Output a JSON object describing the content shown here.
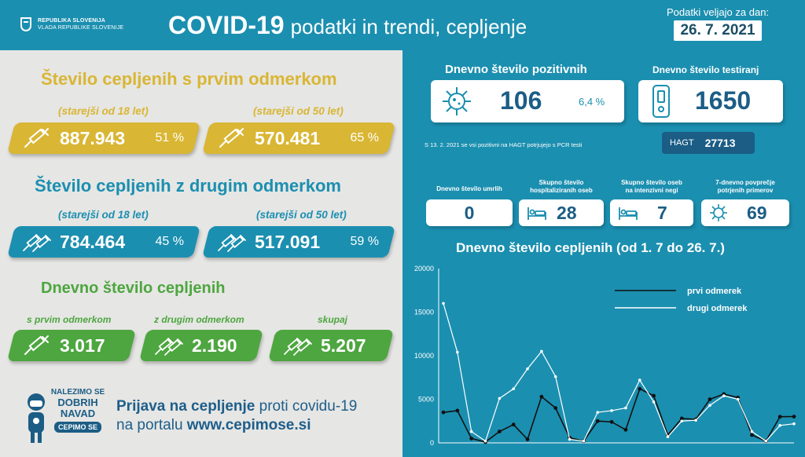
{
  "header": {
    "gov_line1": "REPUBLIKA SLOVENIJA",
    "gov_line2": "VLADA REPUBLIKE SLOVENIJE",
    "title_main": "COVID-19",
    "title_sub": "podatki in trendi, cepljenje",
    "validity_label": "Podatki veljajo za dan:",
    "validity_date": "26. 7. 2021"
  },
  "first_dose": {
    "title": "Število cepljenih s prvim odmerkom",
    "age18_label": "(starejši od 18 let)",
    "age18_value": "887.943",
    "age18_pct": "51 %",
    "age50_label": "(starejši od 50 let)",
    "age50_value": "570.481",
    "age50_pct": "65 %"
  },
  "second_dose": {
    "title": "Število cepljenih z drugim odmerkom",
    "age18_label": "(starejši od 18 let)",
    "age18_value": "784.464",
    "age18_pct": "45 %",
    "age50_label": "(starejši od 50 let)",
    "age50_value": "517.091",
    "age50_pct": "59 %"
  },
  "daily": {
    "title": "Dnevno število cepljenih",
    "first_label": "s prvim odmerkom",
    "first_value": "3.017",
    "second_label": "z drugim odmerkom",
    "second_value": "2.190",
    "total_label": "skupaj",
    "total_value": "5.207"
  },
  "promo": {
    "badge_l1": "NALEZIMO SE",
    "badge_l2": "DOBRIH",
    "badge_l3": "NAVAD",
    "badge_pill": "CEPIMO SE",
    "line1_bold": "Prijava na cepljenje",
    "line1_rest": " proti covidu-19",
    "line2_rest": "na portalu ",
    "line2_bold": "www.cepimose.si"
  },
  "positives": {
    "title": "Dnevno število pozitivnih",
    "value": "106",
    "pct": "6,4 %",
    "note": "S 13. 2. 2021 se vsi pozitivni na HAGT potrjujejo s PCR testi"
  },
  "tests": {
    "title": "Dnevno število testiranj",
    "value": "1650",
    "hagt_label": "HAGT",
    "hagt_value": "27713"
  },
  "stats": [
    {
      "title_l1": "Dnevno število umrlih",
      "title_l2": "",
      "value": "0"
    },
    {
      "title_l1": "Skupno število",
      "title_l2": "hospitaliziranih oseb",
      "value": "28"
    },
    {
      "title_l1": "Skupno število oseb",
      "title_l2": "na intenzivni negi",
      "value": "7"
    },
    {
      "title_l1": "7-dnevno povprečje",
      "title_l2": "potrjenih primerov",
      "value": "69"
    }
  ],
  "chart_title": "Dnevno število cepljenih (od 1. 7 do 26. 7.)",
  "colors": {
    "blue": "#1b8fb0",
    "dark_blue": "#1b5d85",
    "gold": "#d9b634",
    "green": "#4da63f",
    "grey": "#e6e6e4"
  },
  "chart_data": {
    "type": "line",
    "title": "Dnevno število cepljenih (od 1. 7 do 26. 7.)",
    "x": [
      1,
      2,
      3,
      4,
      5,
      6,
      7,
      8,
      9,
      10,
      11,
      12,
      13,
      14,
      15,
      16,
      17,
      18,
      19,
      20,
      21,
      22,
      23,
      24,
      25,
      26
    ],
    "ylim": [
      0,
      20000
    ],
    "yticks": [
      "0",
      "5000",
      "10000",
      "15000",
      "20000"
    ],
    "grid": false,
    "legend_position": "top-right",
    "series": [
      {
        "name": "prvi odmerek",
        "color": "#111111",
        "values": [
          3500,
          3700,
          500,
          100,
          1300,
          2100,
          400,
          5300,
          4000,
          600,
          200,
          2500,
          2400,
          1500,
          6200,
          5400,
          900,
          2800,
          2700,
          5000,
          5600,
          5200,
          900,
          200,
          3000,
          3017
        ]
      },
      {
        "name": "drugi odmerek",
        "color": "#ffffff",
        "values": [
          16000,
          10400,
          1300,
          200,
          5100,
          6200,
          8500,
          10500,
          7600,
          400,
          200,
          3500,
          3700,
          4000,
          7200,
          4700,
          700,
          2500,
          2600,
          4300,
          5400,
          5000,
          1300,
          200,
          2000,
          2190
        ]
      }
    ]
  }
}
